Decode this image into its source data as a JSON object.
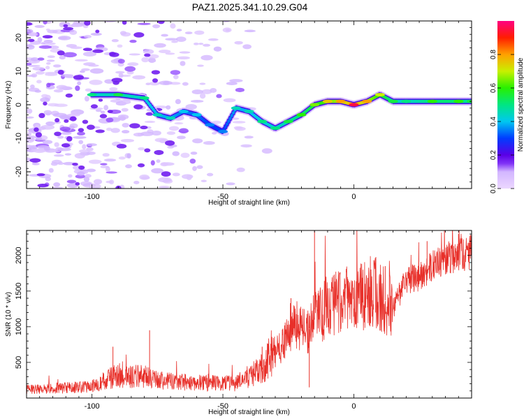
{
  "title": "PAZ1.2025.341.10.29.G04",
  "chart_data": [
    {
      "type": "heatmap",
      "name": "spectrogram",
      "xlabel": "Height of straight line (km)",
      "ylabel": "Frequency (Hz)",
      "xlim": [
        -125,
        45
      ],
      "ylim": [
        -25,
        25
      ],
      "xticks": [
        -100,
        -50,
        0
      ],
      "yticks": [
        -20,
        -10,
        0,
        10,
        20
      ],
      "colorbar": {
        "label": "Normalized spectral amplitude",
        "ticks": [
          0.0,
          0.2,
          0.4,
          0.6,
          0.8
        ],
        "tick_labels": [
          "0.0",
          "0.2",
          "0.4",
          "0.6",
          "0.8"
        ],
        "range": [
          0,
          1
        ]
      },
      "ridge": {
        "x": [
          -100,
          -90,
          -80,
          -75,
          -70,
          -65,
          -60,
          -55,
          -50,
          -45,
          -40,
          -35,
          -30,
          -25,
          -20,
          -15,
          -10,
          -5,
          0,
          5,
          10,
          15,
          20,
          30,
          40,
          45
        ],
        "y": [
          3,
          3,
          2,
          -3,
          -4,
          -2,
          -3,
          -6,
          -8,
          -1,
          -2,
          -5,
          -7,
          -5,
          -3,
          0,
          1,
          1,
          0,
          1,
          3,
          1,
          1,
          1,
          1,
          1
        ],
        "amp": [
          0.5,
          0.55,
          0.5,
          0.45,
          0.45,
          0.4,
          0.4,
          0.35,
          0.35,
          0.45,
          0.45,
          0.5,
          0.5,
          0.55,
          0.6,
          0.65,
          0.75,
          0.8,
          0.95,
          0.8,
          0.7,
          0.55,
          0.5,
          0.6,
          0.6,
          0.55
        ]
      }
    },
    {
      "type": "line",
      "name": "snr",
      "xlabel": "Height of straight line (km)",
      "ylabel": "SNR (10 * v/v)",
      "xlim": [
        -125,
        45
      ],
      "ylim": [
        0,
        2350
      ],
      "xticks": [
        -100,
        -50,
        0
      ],
      "yticks": [
        500,
        1000,
        1500,
        2000
      ],
      "color": "#e8302a",
      "trend": {
        "x": [
          -125,
          -100,
          -95,
          -90,
          -85,
          -80,
          -75,
          -70,
          -60,
          -50,
          -45,
          -40,
          -35,
          -32,
          -28,
          -25,
          -22,
          -18,
          -15,
          -12,
          -10,
          -5,
          0,
          5,
          10,
          15,
          18,
          20,
          25,
          30,
          35,
          40,
          45
        ],
        "y": [
          120,
          160,
          250,
          320,
          300,
          300,
          250,
          230,
          220,
          200,
          210,
          300,
          400,
          600,
          700,
          900,
          1050,
          900,
          1100,
          1200,
          1300,
          1400,
          1350,
          1500,
          1450,
          1250,
          1500,
          1650,
          1700,
          1850,
          1950,
          2000,
          2050
        ]
      },
      "spikes": [
        {
          "x": -92,
          "y": 720
        },
        {
          "x": -78,
          "y": 950
        },
        {
          "x": -35,
          "y": 720
        },
        {
          "x": -24,
          "y": 1400
        },
        {
          "x": -15,
          "y": 2350
        },
        {
          "x": -17,
          "y": 150
        },
        {
          "x": 12,
          "y": 1850
        },
        {
          "x": 28,
          "y": 2200
        },
        {
          "x": 40,
          "y": 2300
        }
      ]
    }
  ]
}
